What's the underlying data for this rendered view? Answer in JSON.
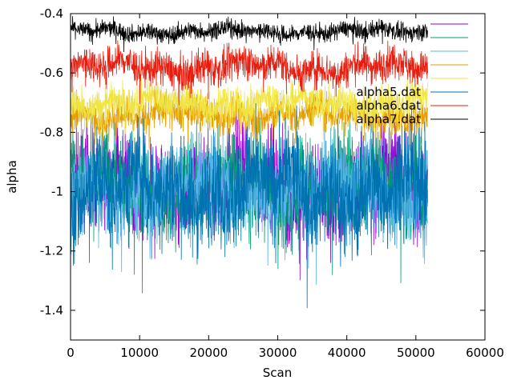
{
  "chart_data": {
    "type": "line",
    "title": "",
    "xlabel": "Scan",
    "ylabel": "alpha",
    "xlim": [
      0,
      60000
    ],
    "ylim": [
      -1.5,
      -0.4
    ],
    "xticks": [
      0,
      10000,
      20000,
      30000,
      40000,
      50000,
      60000
    ],
    "xtick_labels": [
      "0",
      "10000",
      "20000",
      "30000",
      "40000",
      "50000",
      "60000"
    ],
    "yticks": [
      -1.4,
      -1.2,
      -1.0,
      -0.8,
      -0.6,
      -0.4
    ],
    "ytick_labels": [
      "-1.4",
      "-1.2",
      "-1",
      "-0.8",
      "-0.6",
      "-0.4"
    ],
    "grid": false,
    "legend_position": "top-right",
    "x_range_of_data": [
      0,
      51700
    ],
    "series": [
      {
        "name": "",
        "color": "#9400d3",
        "mean": -0.98,
        "spread": 0.16
      },
      {
        "name": "",
        "color": "#009e73",
        "mean": -0.98,
        "spread": 0.16
      },
      {
        "name": "",
        "color": "#56b4e9",
        "mean": -0.99,
        "spread": 0.15
      },
      {
        "name": "",
        "color": "#e69f00",
        "mean": -0.74,
        "spread": 0.06
      },
      {
        "name": "",
        "color": "#f0e442",
        "mean": -0.7,
        "spread": 0.06
      },
      {
        "name": "alpha5.dat",
        "color": "#0072b2",
        "mean": -0.99,
        "spread": 0.17
      },
      {
        "name": "alpha6.dat",
        "color": "#e51e10",
        "mean": -0.58,
        "spread": 0.06
      },
      {
        "name": "alpha7.dat",
        "color": "#000000",
        "mean": -0.46,
        "spread": 0.03
      }
    ]
  }
}
